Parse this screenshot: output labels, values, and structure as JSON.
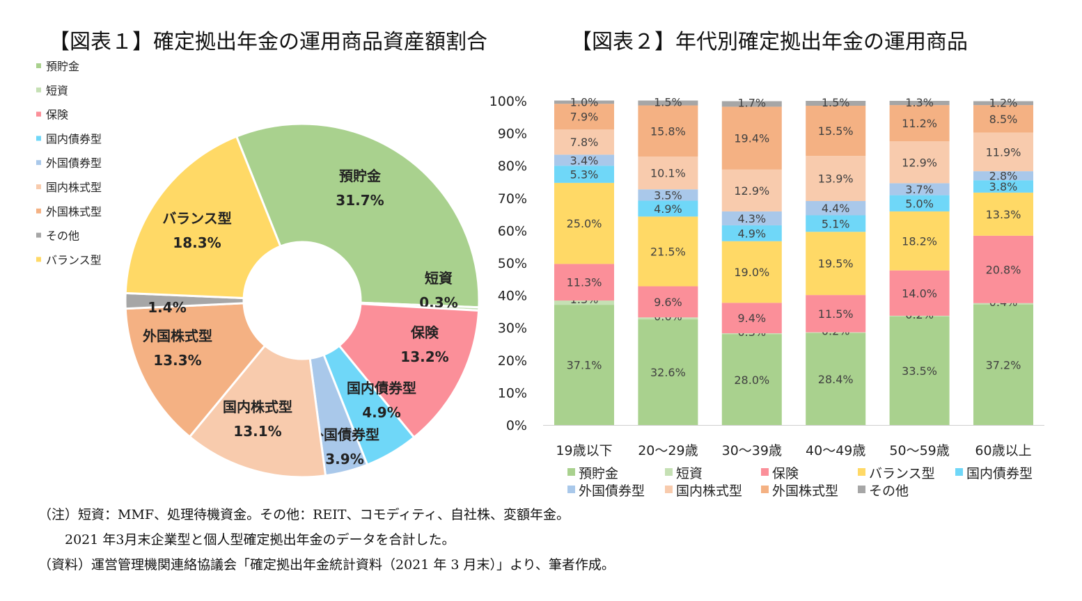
{
  "chart_data": [
    {
      "type": "pie",
      "donut": true,
      "title": "【図表１】確定拠出年金の運用商品資産額割合",
      "legend_position": "left",
      "legend": [
        "預貯金",
        "短資",
        "保険",
        "国内債券型",
        "外国債券型",
        "国内株式型",
        "外国株式型",
        "その他",
        "バランス型"
      ],
      "slices": [
        {
          "name": "預貯金",
          "value": 31.7,
          "label": "31.7%",
          "color": "#a9d18e"
        },
        {
          "name": "短資",
          "value": 0.3,
          "label": "0.3%",
          "color": "#c5e0b4"
        },
        {
          "name": "保険",
          "value": 13.2,
          "label": "13.2%",
          "color": "#fb8f99"
        },
        {
          "name": "国内債券型",
          "value": 4.9,
          "label": "4.9%",
          "color": "#6fd7f8"
        },
        {
          "name": "外国債券型",
          "value": 3.9,
          "label": "3.9%",
          "color": "#a9c8ea"
        },
        {
          "name": "国内株式型",
          "value": 13.1,
          "label": "13.1%",
          "color": "#f8cbad"
        },
        {
          "name": "外国株式型",
          "value": 13.3,
          "label": "13.3%",
          "color": "#f4b183"
        },
        {
          "name": "その他",
          "value": 1.4,
          "label": "1.4%",
          "color": "#a6a6a6"
        },
        {
          "name": "バランス型",
          "value": 18.3,
          "label": "18.3%",
          "color": "#ffd966"
        }
      ]
    },
    {
      "type": "bar",
      "stacked": true,
      "title": "【図表２】年代別確定拠出年金の運用商品",
      "categories": [
        "19歳以下",
        "20～29歳",
        "30～39歳",
        "40～49歳",
        "50～59歳",
        "60歳以上"
      ],
      "y_ticks": [
        "0%",
        "10%",
        "20%",
        "30%",
        "40%",
        "50%",
        "60%",
        "70%",
        "80%",
        "90%",
        "100%"
      ],
      "ylim": [
        0,
        100
      ],
      "legend_position": "bottom",
      "series": [
        {
          "name": "預貯金",
          "color": "#a9d18e",
          "values": [
            37.1,
            32.6,
            28.0,
            28.4,
            33.5,
            37.2
          ]
        },
        {
          "name": "短資",
          "color": "#c5e0b4",
          "values": [
            1.3,
            0.6,
            0.3,
            0.2,
            0.2,
            0.4
          ]
        },
        {
          "name": "保険",
          "color": "#fb8f99",
          "values": [
            11.3,
            9.6,
            9.4,
            11.5,
            14.0,
            20.8
          ]
        },
        {
          "name": "バランス型",
          "color": "#ffd966",
          "values": [
            25.0,
            21.5,
            19.0,
            19.5,
            18.2,
            13.3
          ]
        },
        {
          "name": "国内債券型",
          "color": "#6fd7f8",
          "values": [
            5.3,
            4.9,
            4.9,
            5.1,
            5.0,
            3.8
          ]
        },
        {
          "name": "外国債券型",
          "color": "#a9c8ea",
          "values": [
            3.4,
            3.5,
            4.3,
            4.4,
            3.7,
            2.8
          ]
        },
        {
          "name": "国内株式型",
          "color": "#f8cbad",
          "values": [
            7.8,
            10.1,
            12.9,
            13.9,
            12.9,
            11.9
          ]
        },
        {
          "name": "外国株式型",
          "color": "#f4b183",
          "values": [
            7.9,
            15.8,
            19.4,
            15.5,
            11.2,
            8.5
          ]
        },
        {
          "name": "その他",
          "color": "#a6a6a6",
          "values": [
            1.0,
            1.5,
            1.7,
            1.5,
            1.3,
            1.2
          ]
        }
      ]
    }
  ],
  "notes": [
    "（注）短資：MMF、処理待機資金。その他：REIT、コモディティ、自社株、変額年金。",
    "　　2021 年3月末企業型と個人型確定拠出年金のデータを合計した。",
    "（資料）運営管理機関連絡協議会「確定拠出年金統計資料（2021 年 3 月末）」より、筆者作成。"
  ]
}
